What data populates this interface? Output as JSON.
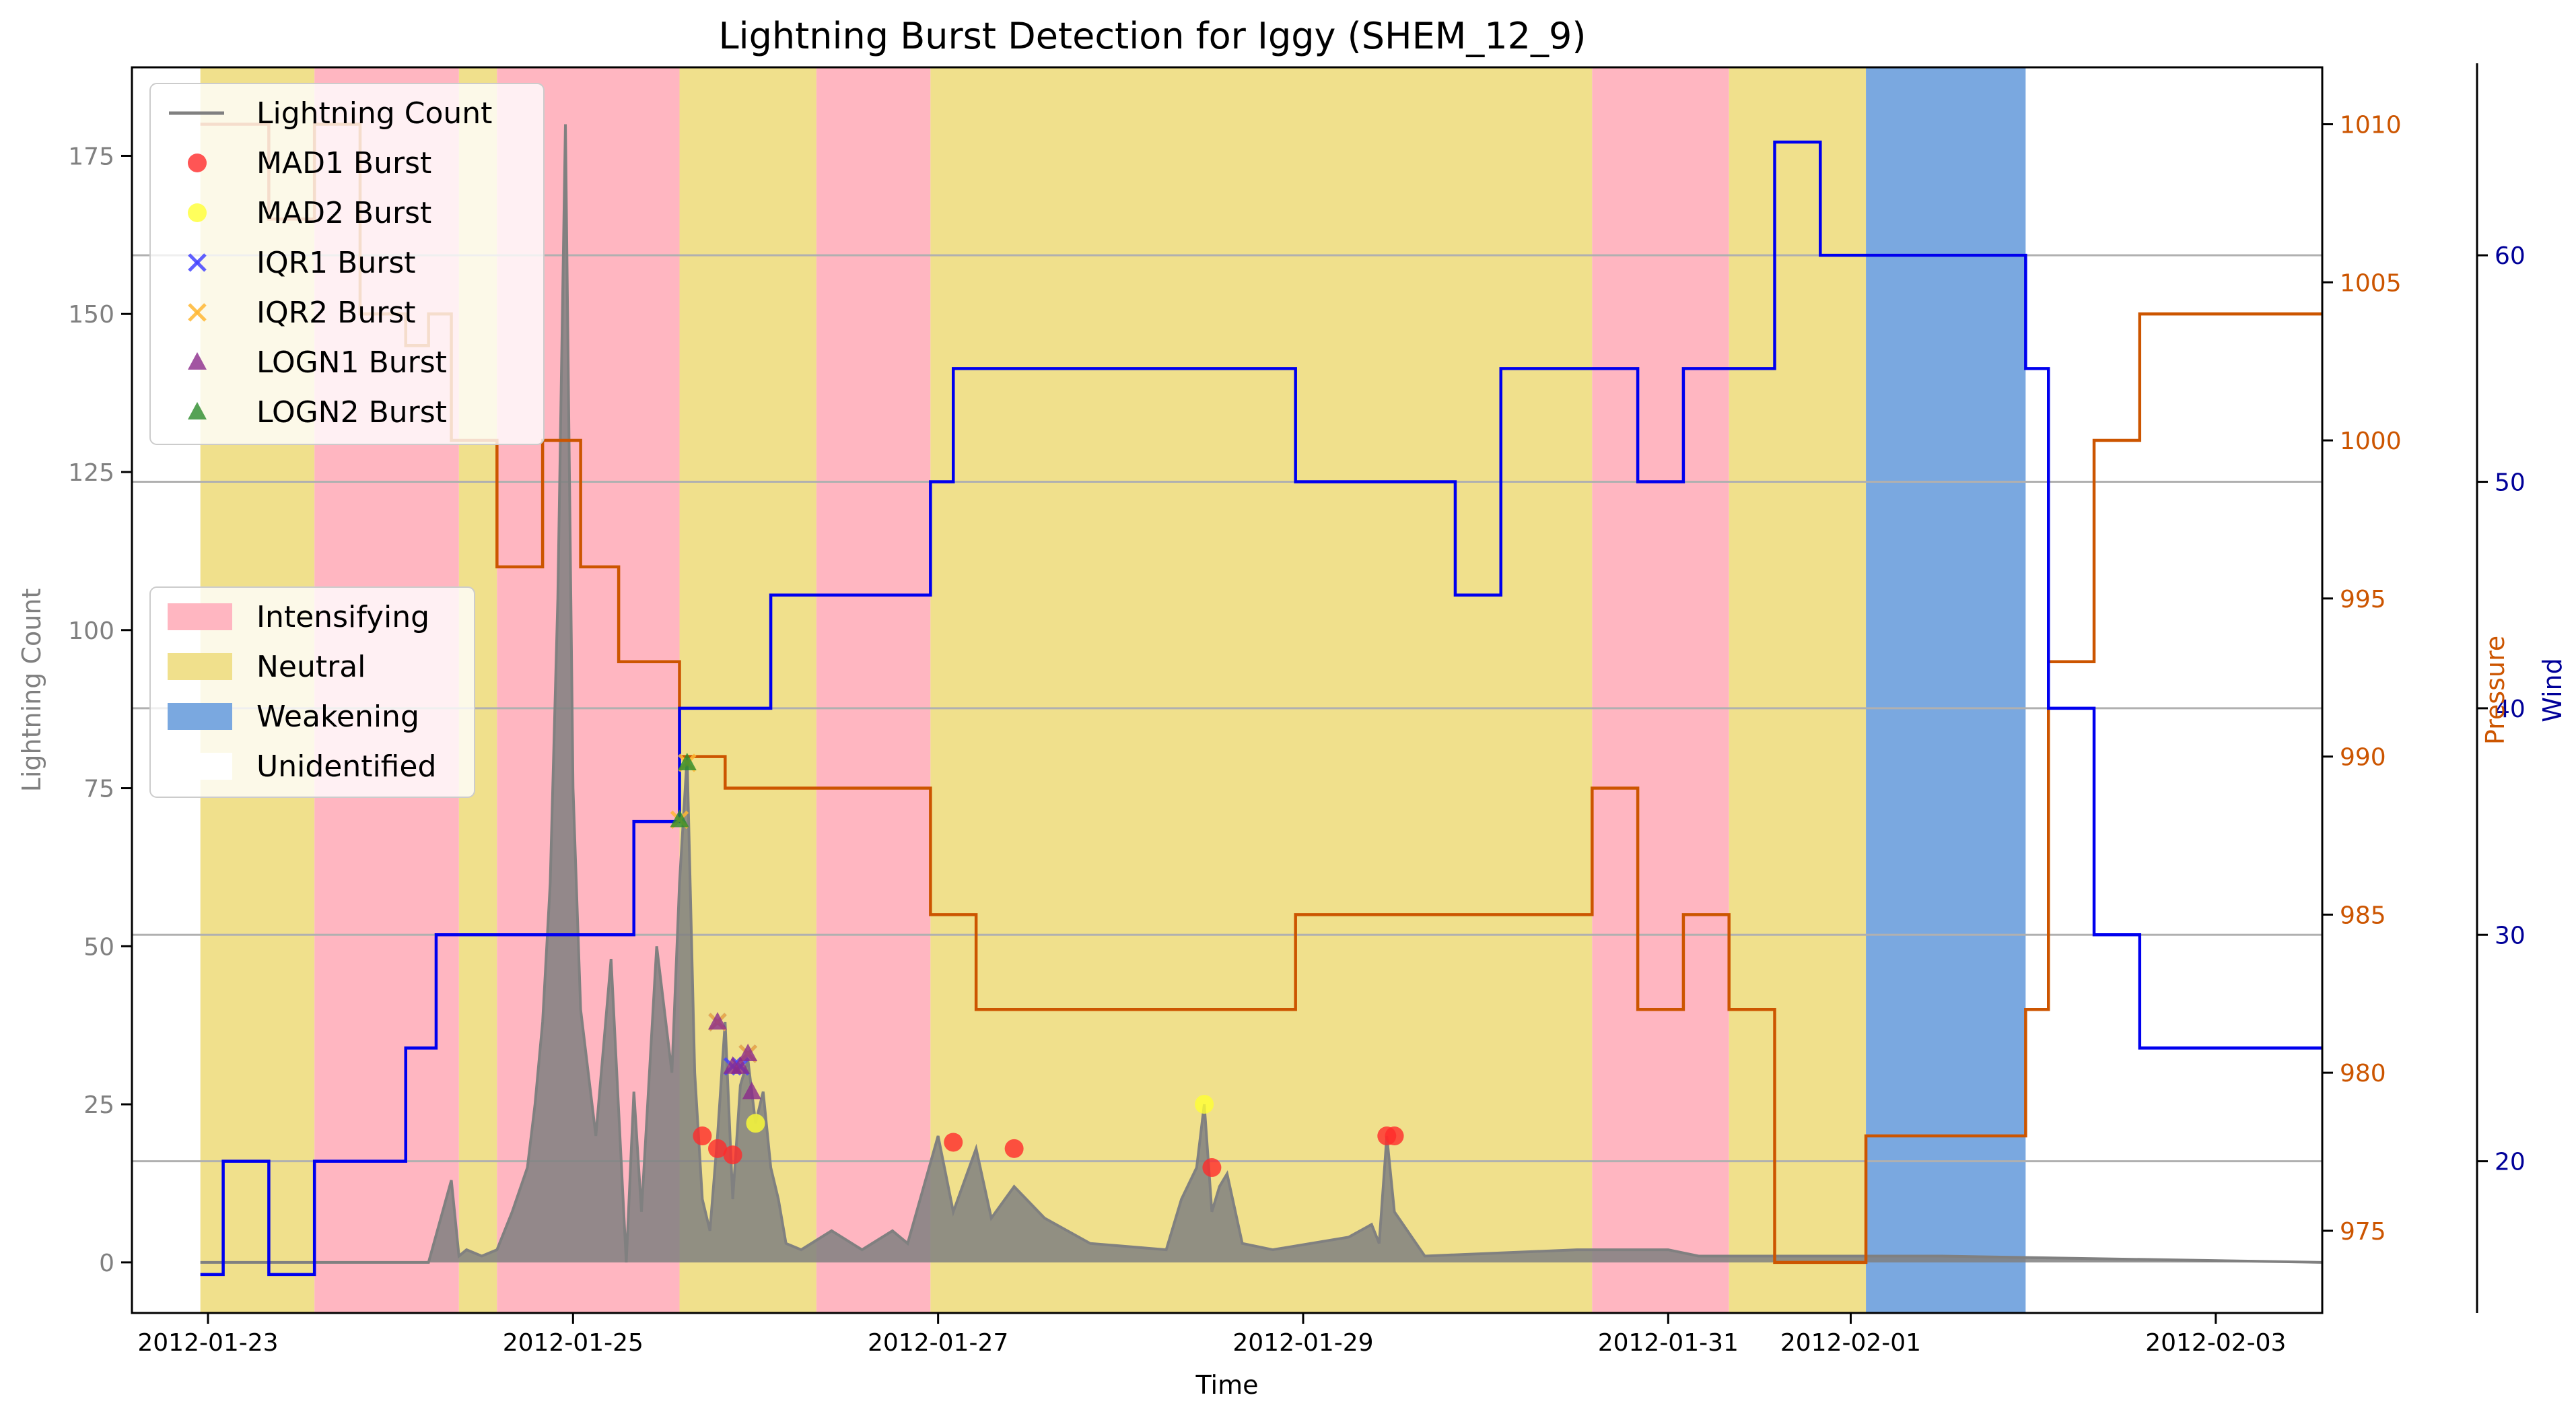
{
  "chart_data": {
    "type": "line",
    "title": "Lightning Burst Detection for Iggy (SHEM_12_9)",
    "xlabel": "Time",
    "ylabel_left": "Lightning Count",
    "ylabel_pressure": "Pressure",
    "ylabel_wind": "Wind",
    "x_range_days": [
      "2012-01-22 14:00",
      "2012-02-03 14:00"
    ],
    "x_ticks": [
      "2012-01-23",
      "2012-01-25",
      "2012-01-27",
      "2012-01-29",
      "2012-01-31",
      "2012-02-01",
      "2012-02-03"
    ],
    "y_left": {
      "range": [
        -8,
        189
      ],
      "ticks": [
        0,
        25,
        50,
        75,
        100,
        125,
        150,
        175
      ]
    },
    "y_pressure": {
      "range": [
        972.4,
        1011.8
      ],
      "ticks": [
        975,
        980,
        985,
        990,
        995,
        1000,
        1005,
        1010
      ]
    },
    "y_wind": {
      "range": [
        13.3,
        68.3
      ],
      "ticks": [
        20,
        30,
        40,
        50,
        60
      ]
    },
    "colors": {
      "lightning": "#808080",
      "pressure": "#cc5500",
      "wind": "#0000ee",
      "intensifying": "#ffb6c1",
      "neutral": "#f0e08c",
      "weakening": "#7aa8e0",
      "grid": "#b0b0b0"
    },
    "phases": [
      {
        "start": "2012-01-22 23:00",
        "end": "2012-01-23 14:00",
        "phase": "neutral"
      },
      {
        "start": "2012-01-23 14:00",
        "end": "2012-01-24 09:00",
        "phase": "intensifying"
      },
      {
        "start": "2012-01-24 09:00",
        "end": "2012-01-24 14:00",
        "phase": "neutral"
      },
      {
        "start": "2012-01-24 14:00",
        "end": "2012-01-25 14:00",
        "phase": "intensifying"
      },
      {
        "start": "2012-01-25 14:00",
        "end": "2012-01-26 08:00",
        "phase": "neutral"
      },
      {
        "start": "2012-01-26 08:00",
        "end": "2012-01-26 23:00",
        "phase": "intensifying"
      },
      {
        "start": "2012-01-26 23:00",
        "end": "2012-01-30 14:00",
        "phase": "neutral"
      },
      {
        "start": "2012-01-30 14:00",
        "end": "2012-01-31 08:00",
        "phase": "intensifying"
      },
      {
        "start": "2012-01-31 08:00",
        "end": "2012-02-01 02:00",
        "phase": "neutral"
      },
      {
        "start": "2012-02-01 02:00",
        "end": "2012-02-01 23:00",
        "phase": "weakening"
      }
    ],
    "pressure_series": {
      "name": "Pressure",
      "x": [
        "2012-01-22 23:00",
        "2012-01-23 08:00",
        "2012-01-23 14:00",
        "2012-01-23 20:00",
        "2012-01-24 02:00",
        "2012-01-24 05:00",
        "2012-01-24 08:00",
        "2012-01-24 14:00",
        "2012-01-24 20:00",
        "2012-01-25 01:00",
        "2012-01-25 06:00",
        "2012-01-25 14:00",
        "2012-01-25 20:00",
        "2012-01-26 08:00",
        "2012-01-26 23:00",
        "2012-01-27 05:00",
        "2012-01-28 23:00",
        "2012-01-29 14:00",
        "2012-01-30 14:00",
        "2012-01-30 20:00",
        "2012-01-31 02:00",
        "2012-01-31 08:00",
        "2012-01-31 14:00",
        "2012-02-01 02:00",
        "2012-02-01 23:00",
        "2012-02-02 02:00",
        "2012-02-02 08:00",
        "2012-02-02 14:00",
        "2012-02-02 20:00",
        "2012-02-03 14:00"
      ],
      "values": [
        1010,
        1007,
        1010,
        1004,
        1003,
        1004,
        1000,
        996,
        1000,
        996,
        993,
        990,
        989,
        989,
        985,
        982,
        985,
        985,
        989,
        982,
        985,
        982,
        974,
        978,
        982,
        993,
        1000,
        1004,
        1004,
        1004
      ]
    },
    "wind_series": {
      "name": "Wind",
      "x": [
        "2012-01-22 23:00",
        "2012-01-23 02:00",
        "2012-01-23 08:00",
        "2012-01-23 14:00",
        "2012-01-24 02:00",
        "2012-01-24 06:00",
        "2012-01-25 02:00",
        "2012-01-25 08:00",
        "2012-01-25 14:00",
        "2012-01-26 02:00",
        "2012-01-26 23:00",
        "2012-01-27 02:00",
        "2012-01-28 23:00",
        "2012-01-29 20:00",
        "2012-01-30 02:00",
        "2012-01-30 20:00",
        "2012-01-31 02:00",
        "2012-01-31 14:00",
        "2012-01-31 20:00",
        "2012-02-01 02:00",
        "2012-02-01 23:00",
        "2012-02-02 02:00",
        "2012-02-02 08:00",
        "2012-02-02 14:00",
        "2012-02-03 14:00"
      ],
      "values": [
        15,
        20,
        15,
        20,
        25,
        30,
        30,
        35,
        40,
        45,
        50,
        55,
        50,
        45,
        55,
        50,
        55,
        65,
        60,
        60,
        55,
        40,
        30,
        25,
        25
      ]
    },
    "lightning_series": {
      "name": "Lightning Count",
      "x": [
        "2012-01-22 23:00",
        "2012-01-24 05:00",
        "2012-01-24 08:00",
        "2012-01-24 09:00",
        "2012-01-24 10:00",
        "2012-01-24 12:00",
        "2012-01-24 14:00",
        "2012-01-24 16:00",
        "2012-01-24 18:00",
        "2012-01-24 19:00",
        "2012-01-24 20:00",
        "2012-01-24 21:00",
        "2012-01-24 22:00",
        "2012-01-24 23:00",
        "2012-01-25 00:00",
        "2012-01-25 01:00",
        "2012-01-25 03:00",
        "2012-01-25 05:00",
        "2012-01-25 07:00",
        "2012-01-25 08:00",
        "2012-01-25 09:00",
        "2012-01-25 11:00",
        "2012-01-25 13:00",
        "2012-01-25 14:00",
        "2012-01-25 15:00",
        "2012-01-25 16:00",
        "2012-01-25 17:00",
        "2012-01-25 18:00",
        "2012-01-25 19:00",
        "2012-01-25 20:00",
        "2012-01-25 21:00",
        "2012-01-25 22:00",
        "2012-01-25 23:00",
        "2012-01-26 00:00",
        "2012-01-26 01:00",
        "2012-01-26 02:00",
        "2012-01-26 03:00",
        "2012-01-26 04:00",
        "2012-01-26 06:00",
        "2012-01-26 10:00",
        "2012-01-26 14:00",
        "2012-01-26 18:00",
        "2012-01-26 20:00",
        "2012-01-27 00:00",
        "2012-01-27 02:00",
        "2012-01-27 05:00",
        "2012-01-27 07:00",
        "2012-01-27 10:00",
        "2012-01-27 14:00",
        "2012-01-27 20:00",
        "2012-01-28 06:00",
        "2012-01-28 08:00",
        "2012-01-28 10:00",
        "2012-01-28 11:00",
        "2012-01-28 12:00",
        "2012-01-28 13:00",
        "2012-01-28 14:00",
        "2012-01-28 16:00",
        "2012-01-28 20:00",
        "2012-01-29 06:00",
        "2012-01-29 09:00",
        "2012-01-29 10:00",
        "2012-01-29 11:00",
        "2012-01-29 12:00",
        "2012-01-29 16:00",
        "2012-01-30 12:00",
        "2012-01-30 20:00",
        "2012-01-31 00:00",
        "2012-01-31 04:00",
        "2012-02-01 12:00",
        "2012-02-03 14:00"
      ],
      "values": [
        0,
        0,
        13,
        1,
        2,
        1,
        2,
        8,
        15,
        25,
        38,
        60,
        105,
        180,
        75,
        40,
        20,
        48,
        0,
        27,
        8,
        50,
        30,
        60,
        80,
        30,
        10,
        5,
        20,
        38,
        10,
        28,
        32,
        22,
        27,
        15,
        10,
        3,
        2,
        5,
        2,
        5,
        3,
        20,
        8,
        18,
        7,
        12,
        7,
        3,
        2,
        10,
        15,
        25,
        8,
        12,
        14,
        3,
        2,
        4,
        6,
        3,
        20,
        8,
        1,
        2,
        2,
        2,
        1,
        1,
        0
      ]
    },
    "bursts": {
      "MAD1": {
        "x": [
          "2012-01-25 17:00",
          "2012-01-25 19:00",
          "2012-01-25 21:00",
          "2012-01-27 02:00",
          "2012-01-27 10:00",
          "2012-01-28 12:00",
          "2012-01-29 11:00",
          "2012-01-29 12:00"
        ],
        "values": [
          20,
          18,
          17,
          19,
          18,
          15,
          20,
          20
        ]
      },
      "MAD2": {
        "x": [
          "2012-01-26 00:00",
          "2012-01-28 11:00"
        ],
        "values": [
          22,
          25
        ]
      },
      "IQR1": {
        "x": [
          "2012-01-25 19:00",
          "2012-01-25 21:00",
          "2012-01-25 22:00",
          "2012-01-25 23:00"
        ],
        "values": [
          38,
          31,
          31,
          33
        ]
      },
      "IQR2": {
        "x": [
          "2012-01-25 14:00",
          "2012-01-25 15:00",
          "2012-01-25 19:00",
          "2012-01-25 23:00"
        ],
        "values": [
          70,
          79,
          38,
          33
        ]
      },
      "LOGN1": {
        "x": [
          "2012-01-25 19:00",
          "2012-01-25 21:00",
          "2012-01-25 22:00",
          "2012-01-25 23:00",
          "2012-01-25 23:30"
        ],
        "values": [
          38,
          31,
          31,
          33,
          27
        ]
      },
      "LOGN2": {
        "x": [
          "2012-01-25 14:00",
          "2012-01-25 15:00"
        ],
        "values": [
          70,
          79
        ]
      }
    },
    "legend_lines": {
      "placement": "top-left",
      "entries": [
        {
          "label": "Lightning Count",
          "kind": "line",
          "color": "#808080"
        },
        {
          "label": "MAD1 Burst",
          "kind": "circle",
          "color": "#ff2a2a"
        },
        {
          "label": "MAD2 Burst",
          "kind": "circle",
          "color": "#ffff33"
        },
        {
          "label": "IQR1 Burst",
          "kind": "x",
          "color": "#4444ff"
        },
        {
          "label": "IQR2 Burst",
          "kind": "x",
          "color": "#ffb732"
        },
        {
          "label": "LOGN1 Burst",
          "kind": "triangle",
          "color": "#8b2a8b"
        },
        {
          "label": "LOGN2 Burst",
          "kind": "triangle",
          "color": "#2a8b2a"
        }
      ]
    },
    "legend_phases": {
      "placement": "center-left",
      "entries": [
        {
          "label": "Intensifying",
          "color": "#ffb6c1"
        },
        {
          "label": "Neutral",
          "color": "#f0e08c"
        },
        {
          "label": "Weakening",
          "color": "#7aa8e0"
        },
        {
          "label": "Unidentified",
          "color": "#ffffff"
        }
      ]
    }
  }
}
